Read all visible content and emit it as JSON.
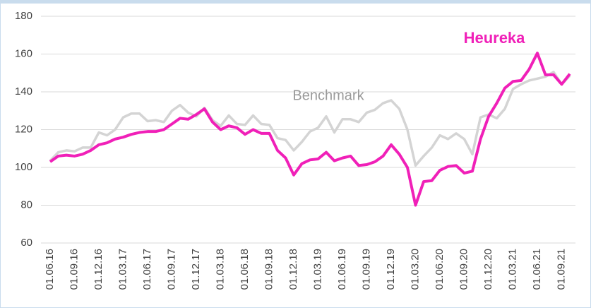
{
  "chart_data": {
    "type": "line",
    "categories": [
      "01.06.16",
      null,
      null,
      "01.09.16",
      null,
      null,
      "01.12.16",
      null,
      null,
      "01.03.17",
      null,
      null,
      "01.06.17",
      null,
      null,
      "01.09.17",
      null,
      null,
      "01.12.17",
      null,
      null,
      "01.03.18",
      null,
      null,
      "01.06.18",
      null,
      null,
      "01.09.18",
      null,
      null,
      "01.12.18",
      null,
      null,
      "01.03.19",
      null,
      null,
      "01.06.19",
      null,
      null,
      "01.09.19",
      null,
      null,
      "01.12.19",
      null,
      null,
      "01.03.20",
      null,
      null,
      "01.06.20",
      null,
      null,
      "01.09.20",
      null,
      null,
      "01.12.20",
      null,
      null,
      "01.03.21",
      null,
      null,
      "01.06.21",
      null,
      null,
      "01.09.21",
      null
    ],
    "series": [
      {
        "name": "Benchmark",
        "color": "#d4d4d4",
        "values": [
          103.5,
          108,
          109,
          108.5,
          110.5,
          110.5,
          118.5,
          117,
          120,
          126.5,
          128.5,
          128.5,
          124.5,
          125,
          124,
          130,
          133,
          129,
          127,
          131.5,
          125,
          122,
          127.5,
          123,
          122.5,
          127.5,
          123,
          122.5,
          115.5,
          114.5,
          109,
          113.5,
          119,
          121,
          127,
          118.5,
          125.5,
          125.5,
          124,
          129,
          130.5,
          134,
          135.5,
          131,
          120,
          101,
          106,
          110.5,
          117,
          115,
          118,
          115,
          107,
          126.5,
          128,
          126,
          131,
          141.5,
          144,
          146,
          147,
          148,
          150.5,
          144,
          148.5
        ]
      },
      {
        "name": "Heureka",
        "color": "#f020b8",
        "values": [
          103,
          106,
          106.5,
          106,
          107,
          109,
          112,
          113,
          115,
          116,
          117.5,
          118.5,
          119,
          119,
          120,
          123,
          126,
          125.5,
          128,
          131,
          124,
          120,
          122,
          121,
          117.5,
          120,
          118,
          118,
          109,
          105,
          96,
          102,
          104,
          104.5,
          108,
          103.5,
          105,
          106,
          101,
          101.5,
          103,
          106,
          112,
          107,
          100,
          80,
          92.5,
          93,
          98.5,
          100.5,
          101,
          97,
          98,
          115,
          127,
          134,
          142,
          145.5,
          146,
          152,
          160.5,
          149,
          149,
          144,
          149.5
        ]
      }
    ],
    "ylim": [
      60,
      180
    ],
    "yticks": [
      60,
      80,
      100,
      120,
      140,
      160,
      180
    ],
    "grid": true
  }
}
